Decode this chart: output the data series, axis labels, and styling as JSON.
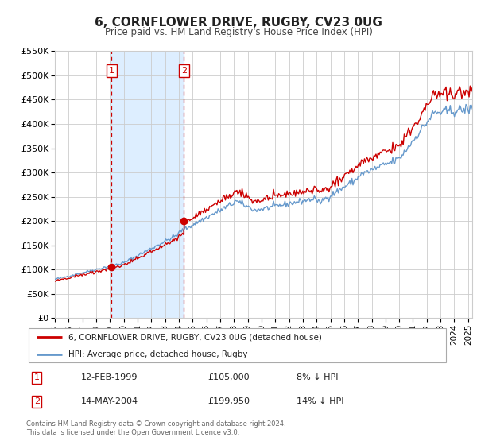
{
  "title": "6, CORNFLOWER DRIVE, RUGBY, CV23 0UG",
  "subtitle": "Price paid vs. HM Land Registry's House Price Index (HPI)",
  "ylim": [
    0,
    550000
  ],
  "yticks": [
    0,
    50000,
    100000,
    150000,
    200000,
    250000,
    300000,
    350000,
    400000,
    450000,
    500000,
    550000
  ],
  "ytick_labels": [
    "£0",
    "£50K",
    "£100K",
    "£150K",
    "£200K",
    "£250K",
    "£300K",
    "£350K",
    "£400K",
    "£450K",
    "£500K",
    "£550K"
  ],
  "xlim_start": 1995.0,
  "xlim_end": 2025.3,
  "xtick_years": [
    1995,
    1996,
    1997,
    1998,
    1999,
    2000,
    2001,
    2002,
    2003,
    2004,
    2005,
    2006,
    2007,
    2008,
    2009,
    2010,
    2011,
    2012,
    2013,
    2014,
    2015,
    2016,
    2017,
    2018,
    2019,
    2020,
    2021,
    2022,
    2023,
    2024,
    2025
  ],
  "sale1_x": 1999.12,
  "sale1_y": 105000,
  "sale1_label": "1",
  "sale1_date": "12-FEB-1999",
  "sale1_price": "£105,000",
  "sale1_hpi": "8% ↓ HPI",
  "sale2_x": 2004.37,
  "sale2_y": 199950,
  "sale2_label": "2",
  "sale2_date": "14-MAY-2004",
  "sale2_price": "£199,950",
  "sale2_hpi": "14% ↓ HPI",
  "red_color": "#cc0000",
  "blue_color": "#6699cc",
  "shading_color": "#ddeeff",
  "legend_label_red": "6, CORNFLOWER DRIVE, RUGBY, CV23 0UG (detached house)",
  "legend_label_blue": "HPI: Average price, detached house, Rugby",
  "footer1": "Contains HM Land Registry data © Crown copyright and database right 2024.",
  "footer2": "This data is licensed under the Open Government Licence v3.0."
}
